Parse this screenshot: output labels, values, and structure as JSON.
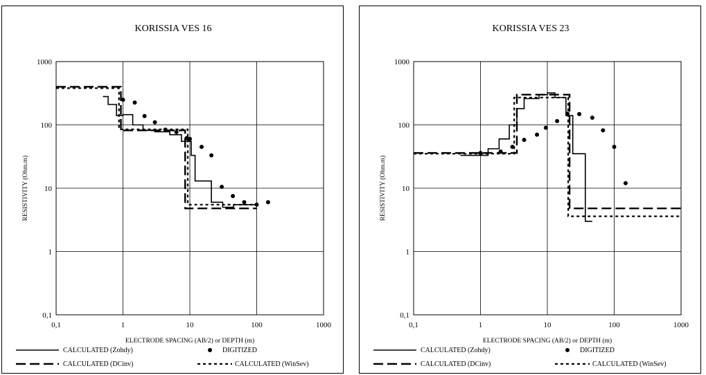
{
  "chart_data": [
    {
      "type": "line",
      "title": "KORISSIA VES 16",
      "xlabel": "ELECTRODE SPACING (AB/2) or DEPTH (m)",
      "ylabel": "RESISTIVITY (Ohm.m)",
      "x_scale": "log",
      "y_scale": "log",
      "xlim": [
        0.1,
        1000
      ],
      "ylim": [
        0.1,
        1000
      ],
      "x_ticks": [
        "0,1",
        "1",
        "10",
        "100",
        "1000"
      ],
      "y_ticks": [
        "0,1",
        "1",
        "10",
        "100",
        "1000"
      ],
      "grid": true,
      "legend": "bottom",
      "legend_labels": {
        "zohdy": "CALCULATED (Zohdy)",
        "digitized": "DIGITIZED",
        "dcinv": "CALCULATED (DCinv)",
        "winsev": "CALCULATED (WinSev)"
      },
      "series": {
        "zohdy": {
          "x": [
            0.5,
            0.6,
            0.6,
            0.8,
            0.8,
            1,
            1,
            1.4,
            1.4,
            2,
            2,
            3,
            3,
            5,
            5,
            7.5,
            7.5,
            10.5,
            10.5,
            12,
            12,
            17,
            17,
            21,
            21,
            31,
            31,
            45,
            45,
            63,
            63,
            100
          ],
          "y": [
            280,
            280,
            210,
            210,
            140,
            140,
            145,
            145,
            100,
            100,
            82,
            82,
            78,
            78,
            70,
            70,
            55,
            55,
            33,
            33,
            13,
            13,
            13,
            13,
            6,
            6,
            5,
            5,
            5.5,
            5.5,
            5.5,
            5.5
          ]
        },
        "digitized": {
          "x": [
            1,
            1.5,
            2.1,
            3,
            4.3,
            6.3,
            9,
            10,
            15,
            21,
            30,
            44,
            65,
            100,
            148
          ],
          "y": [
            250,
            225,
            138,
            110,
            84,
            77,
            62,
            60,
            45,
            33,
            10.5,
            7.5,
            6,
            5.5,
            6
          ]
        },
        "dcinv": {
          "x": [
            0.1,
            0.93,
            0.93,
            8.5,
            8.5,
            100
          ],
          "y": [
            400,
            400,
            82,
            82,
            4.8,
            4.8
          ]
        },
        "winsev": {
          "x": [
            0.1,
            0.87,
            0.87,
            9.3,
            9.3,
            100
          ],
          "y": [
            380,
            380,
            85,
            85,
            5.5,
            5.5
          ]
        }
      }
    },
    {
      "type": "line",
      "title": "KORISSIA VES 23",
      "xlabel": "ELECTRODE SPACING (AB/2) or DEPTH (m)",
      "ylabel": "RESISTIVITY (Ohm.m)",
      "x_scale": "log",
      "y_scale": "log",
      "xlim": [
        0.1,
        1000
      ],
      "ylim": [
        0.1,
        1000
      ],
      "x_ticks": [
        "0,1",
        "1",
        "10",
        "100",
        "1000"
      ],
      "y_ticks": [
        "0,1",
        "1",
        "10",
        "100",
        "1000"
      ],
      "grid": true,
      "legend": "bottom",
      "legend_labels": {
        "zohdy": "CALCULATED (Zohdy)",
        "digitized": "DIGITIZED",
        "dcinv": "CALCULATED (DCinv)",
        "winsev": "CALCULATED (WinSev)"
      },
      "series": {
        "zohdy": {
          "x": [
            0.5,
            1.3,
            1.3,
            1.9,
            1.9,
            2.7,
            2.7,
            3.5,
            3.5,
            4.5,
            4.5,
            7.5,
            7.5,
            10,
            10,
            13,
            13,
            19,
            19,
            24,
            24,
            37,
            37,
            47
          ],
          "y": [
            33,
            33,
            42,
            42,
            60,
            60,
            100,
            100,
            180,
            180,
            260,
            260,
            300,
            300,
            320,
            320,
            270,
            270,
            140,
            140,
            35,
            35,
            3,
            3
          ]
        },
        "digitized": {
          "x": [
            1,
            2,
            3,
            4.5,
            7,
            9.5,
            14,
            20,
            30,
            47,
            68,
            100,
            148
          ],
          "y": [
            36,
            38,
            45,
            58,
            70,
            90,
            115,
            150,
            148,
            130,
            82,
            45,
            12
          ]
        },
        "dcinv": {
          "x": [
            0.1,
            3.5,
            3.5,
            21.5,
            21.5,
            1000
          ],
          "y": [
            36,
            36,
            300,
            300,
            4.8,
            4.8
          ]
        },
        "winsev": {
          "x": [
            0.1,
            3.2,
            3.2,
            20.5,
            20.5,
            1000
          ],
          "y": [
            35,
            35,
            270,
            270,
            3.6,
            3.6
          ]
        }
      }
    }
  ]
}
